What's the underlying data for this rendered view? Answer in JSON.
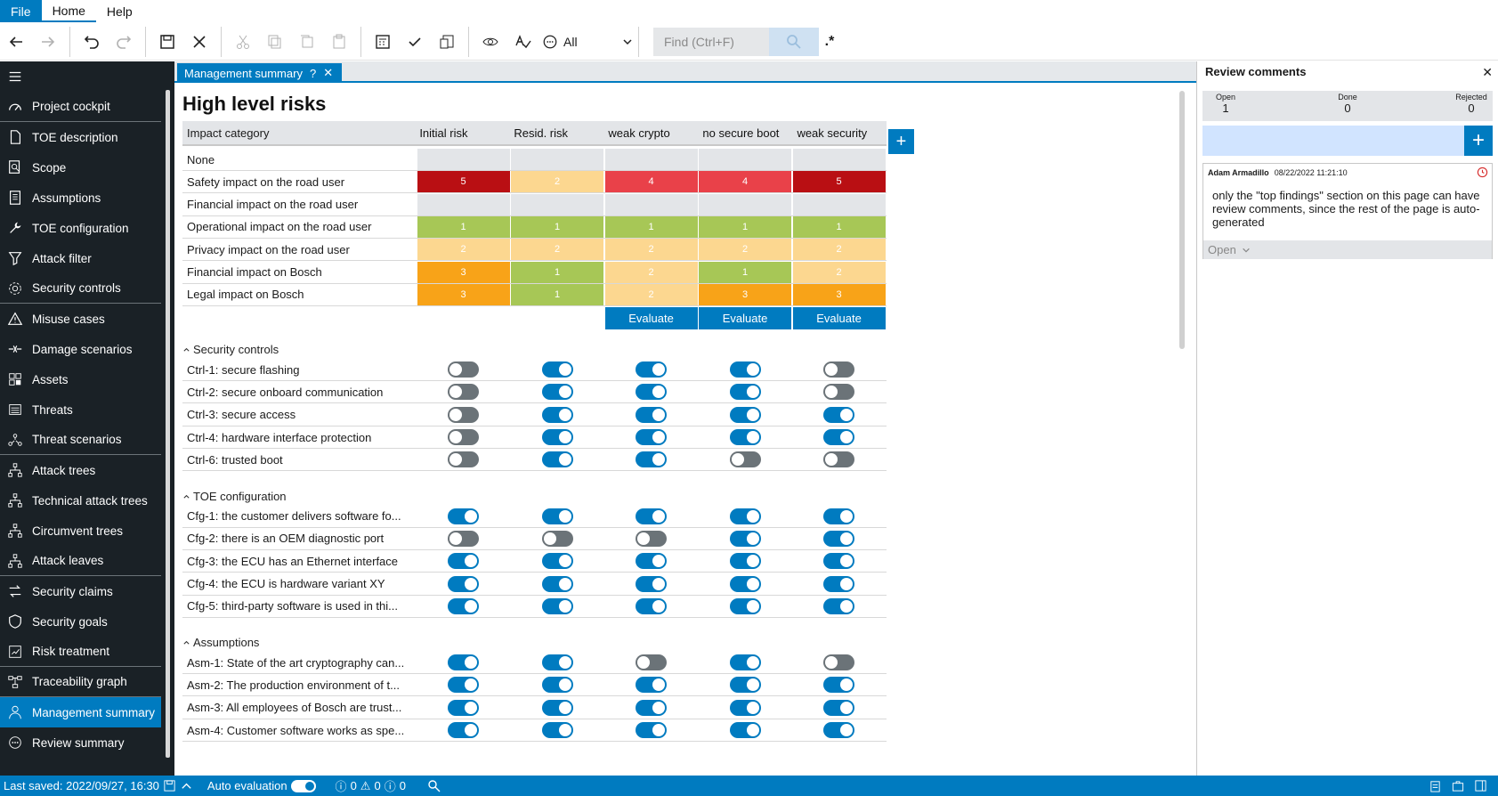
{
  "menu": {
    "file": "File",
    "home": "Home",
    "help": "Help"
  },
  "toolbar": {
    "filter_value": "All",
    "search_placeholder": "Find (Ctrl+F)",
    "regex_label": ".*"
  },
  "sidebar": {
    "items": [
      {
        "label": "Project cockpit",
        "icon": "gauge-icon"
      },
      {
        "label": "TOE description",
        "icon": "document-icon"
      },
      {
        "label": "Scope",
        "icon": "search-doc-icon"
      },
      {
        "label": "Assumptions",
        "icon": "list-doc-icon"
      },
      {
        "label": "TOE configuration",
        "icon": "wrench-icon"
      },
      {
        "label": "Attack filter",
        "icon": "filter-icon"
      },
      {
        "label": "Security controls",
        "icon": "gear-icon"
      },
      {
        "label": "Misuse cases",
        "icon": "warning-icon"
      },
      {
        "label": "Damage scenarios",
        "icon": "crash-icon"
      },
      {
        "label": "Assets",
        "icon": "assets-icon"
      },
      {
        "label": "Threats",
        "icon": "threats-icon"
      },
      {
        "label": "Threat scenarios",
        "icon": "network-icon"
      },
      {
        "label": "Attack trees",
        "icon": "tree-icon"
      },
      {
        "label": "Technical attack trees",
        "icon": "tree-icon"
      },
      {
        "label": "Circumvent trees",
        "icon": "tree-icon"
      },
      {
        "label": "Attack leaves",
        "icon": "tree-icon"
      },
      {
        "label": "Security claims",
        "icon": "claims-icon"
      },
      {
        "label": "Security goals",
        "icon": "goal-icon"
      },
      {
        "label": "Risk treatment",
        "icon": "risk-icon"
      },
      {
        "label": "Traceability graph",
        "icon": "graph-icon"
      },
      {
        "label": "Management summary",
        "icon": "person-icon"
      },
      {
        "label": "Review summary",
        "icon": "chat-icon"
      }
    ]
  },
  "tab": {
    "label": "Management summary",
    "help": "?"
  },
  "main": {
    "title": "High level risks",
    "columns": [
      "Impact category",
      "Initial risk",
      "Resid. risk",
      "weak crypto",
      "no secure boot",
      "weak security"
    ],
    "risk_rows": [
      {
        "label": "None",
        "values": [
          "",
          "",
          "",
          "",
          ""
        ],
        "colors": [
          "#e3e5e8",
          "#e3e5e8",
          "#e3e5e8",
          "#e3e5e8",
          "#e3e5e8"
        ]
      },
      {
        "label": "Safety impact on the road user",
        "values": [
          "5",
          "2",
          "4",
          "4",
          "5"
        ],
        "colors": [
          "#b90f13",
          "#fcd790",
          "#e94149",
          "#e94149",
          "#b90f13"
        ]
      },
      {
        "label": "Financial impact on the road user",
        "values": [
          "",
          "",
          "",
          "",
          ""
        ],
        "colors": [
          "#e3e5e8",
          "#e3e5e8",
          "#e3e5e8",
          "#e3e5e8",
          "#e3e5e8"
        ]
      },
      {
        "label": "Operational impact on the road user",
        "values": [
          "1",
          "1",
          "1",
          "1",
          "1"
        ],
        "colors": [
          "#a7c756",
          "#a7c756",
          "#a7c756",
          "#a7c756",
          "#a7c756"
        ]
      },
      {
        "label": "Privacy impact on the road user",
        "values": [
          "2",
          "2",
          "2",
          "2",
          "2"
        ],
        "colors": [
          "#fcd790",
          "#fcd790",
          "#fcd790",
          "#fcd790",
          "#fcd790"
        ]
      },
      {
        "label": "Financial impact on Bosch",
        "values": [
          "3",
          "1",
          "2",
          "1",
          "2"
        ],
        "colors": [
          "#f8a318",
          "#a7c756",
          "#fcd790",
          "#a7c756",
          "#fcd790"
        ]
      },
      {
        "label": "Legal impact on Bosch",
        "values": [
          "3",
          "1",
          "2",
          "3",
          "3"
        ],
        "colors": [
          "#f8a318",
          "#a7c756",
          "#fcd790",
          "#f8a318",
          "#f8a318"
        ]
      }
    ],
    "evaluate_label": "Evaluate",
    "sections": [
      {
        "title": "Security controls",
        "rows": [
          {
            "label": "Ctrl-1: secure flashing",
            "toggles": [
              false,
              true,
              true,
              true,
              false
            ]
          },
          {
            "label": "Ctrl-2: secure onboard communication",
            "toggles": [
              false,
              true,
              true,
              true,
              false
            ]
          },
          {
            "label": "Ctrl-3: secure access",
            "toggles": [
              false,
              true,
              true,
              true,
              true
            ]
          },
          {
            "label": "Ctrl-4: hardware interface protection",
            "toggles": [
              false,
              true,
              true,
              true,
              true
            ]
          },
          {
            "label": "Ctrl-6: trusted boot",
            "toggles": [
              false,
              true,
              true,
              false,
              false
            ]
          }
        ]
      },
      {
        "title": "TOE configuration",
        "rows": [
          {
            "label": "Cfg-1: the customer delivers software fo...",
            "toggles": [
              true,
              true,
              true,
              true,
              true
            ]
          },
          {
            "label": "Cfg-2: there is an OEM diagnostic port",
            "toggles": [
              false,
              false,
              false,
              true,
              true
            ]
          },
          {
            "label": "Cfg-3: the ECU has an Ethernet interface",
            "toggles": [
              true,
              true,
              true,
              true,
              true
            ]
          },
          {
            "label": "Cfg-4: the ECU is hardware variant XY",
            "toggles": [
              true,
              true,
              true,
              true,
              true
            ]
          },
          {
            "label": "Cfg-5: third-party software is used in thi...",
            "toggles": [
              true,
              true,
              true,
              true,
              true
            ]
          }
        ]
      },
      {
        "title": "Assumptions",
        "rows": [
          {
            "label": "Asm-1: State of the art cryptography can...",
            "toggles": [
              true,
              true,
              false,
              true,
              false
            ]
          },
          {
            "label": "Asm-2: The production environment of t...",
            "toggles": [
              true,
              true,
              true,
              true,
              true
            ]
          },
          {
            "label": "Asm-3: All employees of Bosch are trust...",
            "toggles": [
              true,
              true,
              true,
              true,
              true
            ]
          },
          {
            "label": "Asm-4: Customer software works as spe...",
            "toggles": [
              true,
              true,
              true,
              true,
              true
            ]
          }
        ]
      }
    ]
  },
  "review": {
    "title": "Review comments",
    "stats": [
      {
        "label": "Open",
        "value": "1"
      },
      {
        "label": "Done",
        "value": "0"
      },
      {
        "label": "Rejected",
        "value": "0"
      }
    ],
    "comment": {
      "author": "Adam Armadillo",
      "timestamp": "08/22/2022 11:21:10",
      "text": "only the \"top findings\" section on this page can have review comments, since the rest of the page is auto-generated",
      "status": "Open"
    }
  },
  "status": {
    "last_saved": "Last saved: 2022/09/27, 16:30",
    "auto_eval": "Auto evaluation",
    "errors": "0",
    "warnings": "0",
    "infos": "0"
  }
}
